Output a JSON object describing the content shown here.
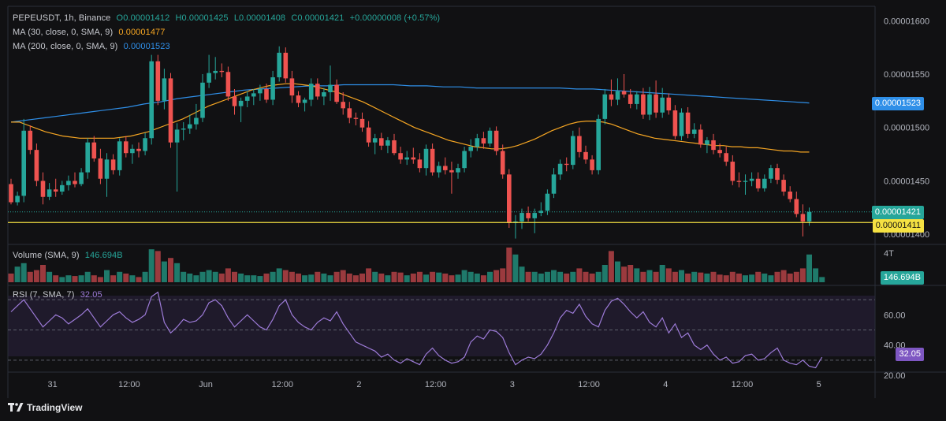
{
  "legend": {
    "symbol": "PEPEUSDT, 1h, Binance",
    "open": "O0.00001412",
    "high": "H0.00001425",
    "low": "L0.00001408",
    "close": "C0.00001421",
    "change": "+0.00000008 (+0.57%)",
    "ma30_label": "MA (30, close, 0, SMA, 9)",
    "ma30_value": "0.00001477",
    "ma200_label": "MA (200, close, 0, SMA, 9)",
    "ma200_value": "0.00001523",
    "volume_label": "Volume (SMA, 9)",
    "volume_value": "146.694B",
    "rsi_label": "RSI (7, SMA, 7)",
    "rsi_value": "32.05"
  },
  "tags": {
    "ma200": "0.00001523",
    "close": "0.00001421",
    "hline": "0.00001411",
    "volume": "146.694B",
    "rsi": "32.05"
  },
  "brand": "TradingView",
  "colors": {
    "up": "#26a69a",
    "down": "#ef5350",
    "ma30": "#f6a623",
    "ma200": "#2f8fe8",
    "rsi": "#9d7bd8",
    "hline": "#f5e142",
    "background": "#111113"
  },
  "chart_data": {
    "type": "candlestick",
    "price_axis": {
      "ylim": [
        1.392e-05,
        1.612e-05
      ],
      "ticks": [
        "0.00001600",
        "0.00001550",
        "0.00001500",
        "0.00001450",
        "0.00001400"
      ],
      "tick_values": [
        1.6e-05,
        1.55e-05,
        1.5e-05,
        1.45e-05,
        1.4e-05
      ]
    },
    "x_axis": {
      "ticks": [
        "31",
        "12:00",
        "Jun",
        "12:00",
        "2",
        "12:00",
        "3",
        "12:00",
        "4",
        "12:00",
        "5"
      ],
      "tick_index": [
        6.5,
        18.5,
        30.5,
        42.5,
        54.5,
        66.5,
        78.5,
        90.5,
        102.5,
        114.5,
        126.5
      ]
    },
    "candles": [
      {
        "o": 1.447,
        "h": 1.452,
        "l": 1.428,
        "c": 1.43
      },
      {
        "o": 1.43,
        "h": 1.44,
        "l": 1.427,
        "c": 1.436
      },
      {
        "o": 1.436,
        "h": 1.508,
        "l": 1.43,
        "c": 1.497
      },
      {
        "o": 1.497,
        "h": 1.502,
        "l": 1.475,
        "c": 1.479
      },
      {
        "o": 1.479,
        "h": 1.485,
        "l": 1.445,
        "c": 1.45
      },
      {
        "o": 1.45,
        "h": 1.458,
        "l": 1.428,
        "c": 1.435
      },
      {
        "o": 1.435,
        "h": 1.448,
        "l": 1.432,
        "c": 1.442
      },
      {
        "o": 1.442,
        "h": 1.452,
        "l": 1.435,
        "c": 1.44
      },
      {
        "o": 1.44,
        "h": 1.45,
        "l": 1.437,
        "c": 1.446
      },
      {
        "o": 1.446,
        "h": 1.455,
        "l": 1.441,
        "c": 1.45
      },
      {
        "o": 1.45,
        "h": 1.458,
        "l": 1.444,
        "c": 1.447
      },
      {
        "o": 1.447,
        "h": 1.462,
        "l": 1.445,
        "c": 1.458
      },
      {
        "o": 1.458,
        "h": 1.49,
        "l": 1.452,
        "c": 1.486
      },
      {
        "o": 1.486,
        "h": 1.492,
        "l": 1.468,
        "c": 1.471
      },
      {
        "o": 1.471,
        "h": 1.48,
        "l": 1.447,
        "c": 1.452
      },
      {
        "o": 1.452,
        "h": 1.476,
        "l": 1.435,
        "c": 1.47
      },
      {
        "o": 1.47,
        "h": 1.475,
        "l": 1.456,
        "c": 1.46
      },
      {
        "o": 1.46,
        "h": 1.49,
        "l": 1.455,
        "c": 1.487
      },
      {
        "o": 1.487,
        "h": 1.492,
        "l": 1.472,
        "c": 1.476
      },
      {
        "o": 1.476,
        "h": 1.484,
        "l": 1.466,
        "c": 1.48
      },
      {
        "o": 1.48,
        "h": 1.486,
        "l": 1.472,
        "c": 1.478
      },
      {
        "o": 1.478,
        "h": 1.495,
        "l": 1.474,
        "c": 1.49
      },
      {
        "o": 1.49,
        "h": 1.568,
        "l": 1.484,
        "c": 1.562
      },
      {
        "o": 1.562,
        "h": 1.568,
        "l": 1.521,
        "c": 1.525
      },
      {
        "o": 1.525,
        "h": 1.555,
        "l": 1.517,
        "c": 1.546
      },
      {
        "o": 1.546,
        "h": 1.551,
        "l": 1.481,
        "c": 1.486
      },
      {
        "o": 1.486,
        "h": 1.504,
        "l": 1.44,
        "c": 1.498
      },
      {
        "o": 1.498,
        "h": 1.505,
        "l": 1.488,
        "c": 1.499
      },
      {
        "o": 1.499,
        "h": 1.512,
        "l": 1.494,
        "c": 1.503
      },
      {
        "o": 1.503,
        "h": 1.522,
        "l": 1.498,
        "c": 1.509
      },
      {
        "o": 1.509,
        "h": 1.55,
        "l": 1.505,
        "c": 1.542
      },
      {
        "o": 1.542,
        "h": 1.568,
        "l": 1.537,
        "c": 1.551
      },
      {
        "o": 1.551,
        "h": 1.566,
        "l": 1.545,
        "c": 1.553
      },
      {
        "o": 1.553,
        "h": 1.56,
        "l": 1.547,
        "c": 1.552
      },
      {
        "o": 1.552,
        "h": 1.557,
        "l": 1.525,
        "c": 1.529
      },
      {
        "o": 1.529,
        "h": 1.536,
        "l": 1.512,
        "c": 1.52
      },
      {
        "o": 1.52,
        "h": 1.528,
        "l": 1.505,
        "c": 1.525
      },
      {
        "o": 1.525,
        "h": 1.534,
        "l": 1.519,
        "c": 1.529
      },
      {
        "o": 1.529,
        "h": 1.536,
        "l": 1.521,
        "c": 1.532
      },
      {
        "o": 1.532,
        "h": 1.54,
        "l": 1.525,
        "c": 1.536
      },
      {
        "o": 1.536,
        "h": 1.541,
        "l": 1.523,
        "c": 1.526
      },
      {
        "o": 1.526,
        "h": 1.553,
        "l": 1.521,
        "c": 1.547
      },
      {
        "o": 1.547,
        "h": 1.576,
        "l": 1.543,
        "c": 1.57
      },
      {
        "o": 1.57,
        "h": 1.575,
        "l": 1.542,
        "c": 1.546
      },
      {
        "o": 1.546,
        "h": 1.553,
        "l": 1.523,
        "c": 1.53
      },
      {
        "o": 1.53,
        "h": 1.534,
        "l": 1.519,
        "c": 1.523
      },
      {
        "o": 1.523,
        "h": 1.528,
        "l": 1.515,
        "c": 1.526
      },
      {
        "o": 1.526,
        "h": 1.546,
        "l": 1.52,
        "c": 1.541
      },
      {
        "o": 1.541,
        "h": 1.546,
        "l": 1.526,
        "c": 1.529
      },
      {
        "o": 1.529,
        "h": 1.537,
        "l": 1.521,
        "c": 1.533
      },
      {
        "o": 1.533,
        "h": 1.558,
        "l": 1.525,
        "c": 1.54
      },
      {
        "o": 1.54,
        "h": 1.545,
        "l": 1.522,
        "c": 1.524
      },
      {
        "o": 1.524,
        "h": 1.533,
        "l": 1.512,
        "c": 1.518
      },
      {
        "o": 1.518,
        "h": 1.524,
        "l": 1.504,
        "c": 1.509
      },
      {
        "o": 1.509,
        "h": 1.514,
        "l": 1.502,
        "c": 1.508
      },
      {
        "o": 1.508,
        "h": 1.514,
        "l": 1.496,
        "c": 1.5
      },
      {
        "o": 1.5,
        "h": 1.506,
        "l": 1.482,
        "c": 1.486
      },
      {
        "o": 1.486,
        "h": 1.494,
        "l": 1.475,
        "c": 1.49
      },
      {
        "o": 1.49,
        "h": 1.495,
        "l": 1.479,
        "c": 1.483
      },
      {
        "o": 1.483,
        "h": 1.491,
        "l": 1.476,
        "c": 1.488
      },
      {
        "o": 1.488,
        "h": 1.494,
        "l": 1.474,
        "c": 1.476
      },
      {
        "o": 1.476,
        "h": 1.482,
        "l": 1.466,
        "c": 1.47
      },
      {
        "o": 1.47,
        "h": 1.478,
        "l": 1.465,
        "c": 1.472
      },
      {
        "o": 1.472,
        "h": 1.481,
        "l": 1.466,
        "c": 1.47
      },
      {
        "o": 1.47,
        "h": 1.476,
        "l": 1.458,
        "c": 1.462
      },
      {
        "o": 1.462,
        "h": 1.484,
        "l": 1.455,
        "c": 1.48
      },
      {
        "o": 1.48,
        "h": 1.485,
        "l": 1.455,
        "c": 1.458
      },
      {
        "o": 1.458,
        "h": 1.468,
        "l": 1.453,
        "c": 1.464
      },
      {
        "o": 1.464,
        "h": 1.472,
        "l": 1.456,
        "c": 1.46
      },
      {
        "o": 1.46,
        "h": 1.468,
        "l": 1.438,
        "c": 1.458
      },
      {
        "o": 1.458,
        "h": 1.466,
        "l": 1.452,
        "c": 1.462
      },
      {
        "o": 1.462,
        "h": 1.482,
        "l": 1.458,
        "c": 1.478
      },
      {
        "o": 1.478,
        "h": 1.489,
        "l": 1.472,
        "c": 1.482
      },
      {
        "o": 1.482,
        "h": 1.494,
        "l": 1.478,
        "c": 1.49
      },
      {
        "o": 1.49,
        "h": 1.496,
        "l": 1.48,
        "c": 1.485
      },
      {
        "o": 1.485,
        "h": 1.5,
        "l": 1.482,
        "c": 1.497
      },
      {
        "o": 1.497,
        "h": 1.501,
        "l": 1.474,
        "c": 1.478
      },
      {
        "o": 1.478,
        "h": 1.484,
        "l": 1.452,
        "c": 1.456
      },
      {
        "o": 1.456,
        "h": 1.461,
        "l": 1.406,
        "c": 1.411
      },
      {
        "o": 1.411,
        "h": 1.418,
        "l": 1.396,
        "c": 1.412
      },
      {
        "o": 1.412,
        "h": 1.424,
        "l": 1.405,
        "c": 1.42
      },
      {
        "o": 1.42,
        "h": 1.426,
        "l": 1.412,
        "c": 1.415
      },
      {
        "o": 1.415,
        "h": 1.424,
        "l": 1.401,
        "c": 1.42
      },
      {
        "o": 1.42,
        "h": 1.43,
        "l": 1.417,
        "c": 1.422
      },
      {
        "o": 1.422,
        "h": 1.442,
        "l": 1.418,
        "c": 1.438
      },
      {
        "o": 1.438,
        "h": 1.462,
        "l": 1.434,
        "c": 1.456
      },
      {
        "o": 1.456,
        "h": 1.47,
        "l": 1.451,
        "c": 1.466
      },
      {
        "o": 1.466,
        "h": 1.472,
        "l": 1.459,
        "c": 1.465
      },
      {
        "o": 1.465,
        "h": 1.497,
        "l": 1.461,
        "c": 1.492
      },
      {
        "o": 1.492,
        "h": 1.5,
        "l": 1.472,
        "c": 1.477
      },
      {
        "o": 1.477,
        "h": 1.483,
        "l": 1.466,
        "c": 1.47
      },
      {
        "o": 1.47,
        "h": 1.474,
        "l": 1.456,
        "c": 1.46
      },
      {
        "o": 1.46,
        "h": 1.512,
        "l": 1.456,
        "c": 1.508
      },
      {
        "o": 1.508,
        "h": 1.536,
        "l": 1.503,
        "c": 1.531
      },
      {
        "o": 1.531,
        "h": 1.545,
        "l": 1.52,
        "c": 1.526
      },
      {
        "o": 1.526,
        "h": 1.546,
        "l": 1.521,
        "c": 1.534
      },
      {
        "o": 1.534,
        "h": 1.55,
        "l": 1.528,
        "c": 1.531
      },
      {
        "o": 1.531,
        "h": 1.536,
        "l": 1.518,
        "c": 1.522
      },
      {
        "o": 1.522,
        "h": 1.534,
        "l": 1.517,
        "c": 1.531
      },
      {
        "o": 1.531,
        "h": 1.537,
        "l": 1.508,
        "c": 1.512
      },
      {
        "o": 1.512,
        "h": 1.538,
        "l": 1.507,
        "c": 1.531
      },
      {
        "o": 1.531,
        "h": 1.544,
        "l": 1.509,
        "c": 1.514
      },
      {
        "o": 1.514,
        "h": 1.537,
        "l": 1.509,
        "c": 1.528
      },
      {
        "o": 1.528,
        "h": 1.532,
        "l": 1.512,
        "c": 1.516
      },
      {
        "o": 1.516,
        "h": 1.521,
        "l": 1.489,
        "c": 1.492
      },
      {
        "o": 1.492,
        "h": 1.518,
        "l": 1.488,
        "c": 1.514
      },
      {
        "o": 1.514,
        "h": 1.519,
        "l": 1.49,
        "c": 1.494
      },
      {
        "o": 1.494,
        "h": 1.504,
        "l": 1.49,
        "c": 1.498
      },
      {
        "o": 1.498,
        "h": 1.503,
        "l": 1.481,
        "c": 1.484
      },
      {
        "o": 1.484,
        "h": 1.491,
        "l": 1.476,
        "c": 1.488
      },
      {
        "o": 1.488,
        "h": 1.494,
        "l": 1.475,
        "c": 1.479
      },
      {
        "o": 1.479,
        "h": 1.485,
        "l": 1.472,
        "c": 1.476
      },
      {
        "o": 1.476,
        "h": 1.482,
        "l": 1.464,
        "c": 1.468
      },
      {
        "o": 1.468,
        "h": 1.474,
        "l": 1.446,
        "c": 1.45
      },
      {
        "o": 1.45,
        "h": 1.458,
        "l": 1.444,
        "c": 1.449
      },
      {
        "o": 1.449,
        "h": 1.456,
        "l": 1.437,
        "c": 1.45
      },
      {
        "o": 1.45,
        "h": 1.458,
        "l": 1.445,
        "c": 1.452
      },
      {
        "o": 1.452,
        "h": 1.458,
        "l": 1.44,
        "c": 1.443
      },
      {
        "o": 1.443,
        "h": 1.456,
        "l": 1.44,
        "c": 1.452
      },
      {
        "o": 1.452,
        "h": 1.465,
        "l": 1.448,
        "c": 1.462
      },
      {
        "o": 1.462,
        "h": 1.466,
        "l": 1.447,
        "c": 1.451
      },
      {
        "o": 1.451,
        "h": 1.456,
        "l": 1.436,
        "c": 1.44
      },
      {
        "o": 1.44,
        "h": 1.445,
        "l": 1.43,
        "c": 1.433
      },
      {
        "o": 1.433,
        "h": 1.44,
        "l": 1.416,
        "c": 1.419
      },
      {
        "o": 1.419,
        "h": 1.428,
        "l": 1.398,
        "c": 1.412
      },
      {
        "o": 1.412,
        "h": 1.425,
        "l": 1.408,
        "c": 1.421
      }
    ],
    "ma30": [
      1.505,
      1.505,
      1.502,
      1.499,
      1.496,
      1.494,
      1.492,
      1.491,
      1.49,
      1.49,
      1.49,
      1.49,
      1.49,
      1.491,
      1.492,
      1.494,
      1.496,
      1.499,
      1.502,
      1.505,
      1.508,
      1.512,
      1.516,
      1.52,
      1.523,
      1.526,
      1.529,
      1.532,
      1.535,
      1.537,
      1.539,
      1.54,
      1.541,
      1.541,
      1.54,
      1.539,
      1.537,
      1.535,
      1.533,
      1.53,
      1.527,
      1.524,
      1.52,
      1.516,
      1.512,
      1.508,
      1.504,
      1.5,
      1.497,
      1.494,
      1.491,
      1.488,
      1.486,
      1.484,
      1.482,
      1.481,
      1.48,
      1.48,
      1.481,
      1.483,
      1.486,
      1.489,
      1.493,
      1.497,
      1.5,
      1.503,
      1.505,
      1.506,
      1.506,
      1.505,
      1.503,
      1.5,
      1.497,
      1.494,
      1.492,
      1.49,
      1.489,
      1.488,
      1.487,
      1.486,
      1.485,
      1.484,
      1.483,
      1.483,
      1.482,
      1.482,
      1.481,
      1.481,
      1.48,
      1.479,
      1.478,
      1.478,
      1.477,
      1.477
    ],
    "ma200": [
      1.505,
      1.507,
      1.509,
      1.511,
      1.513,
      1.515,
      1.517,
      1.519,
      1.522,
      1.524,
      1.527,
      1.529,
      1.531,
      1.533,
      1.535,
      1.536,
      1.537,
      1.538,
      1.539,
      1.539,
      1.54,
      1.54,
      1.54,
      1.54,
      1.539,
      1.539,
      1.538,
      1.538,
      1.537,
      1.537,
      1.537,
      1.537,
      1.537,
      1.537,
      1.536,
      1.536,
      1.535,
      1.534,
      1.533,
      1.532,
      1.531,
      1.53,
      1.529,
      1.528,
      1.527,
      1.526,
      1.525,
      1.524,
      1.523
    ],
    "hline_value": 1.411,
    "volume": [
      0.25,
      0.45,
      0.55,
      0.3,
      0.35,
      0.5,
      0.3,
      0.2,
      0.15,
      0.2,
      0.18,
      0.2,
      0.3,
      0.2,
      0.15,
      0.35,
      0.2,
      0.3,
      0.25,
      0.2,
      0.15,
      0.3,
      0.95,
      0.9,
      0.6,
      0.7,
      0.55,
      0.3,
      0.25,
      0.2,
      0.3,
      0.35,
      0.3,
      0.25,
      0.4,
      0.3,
      0.25,
      0.2,
      0.2,
      0.18,
      0.25,
      0.3,
      0.4,
      0.35,
      0.3,
      0.25,
      0.2,
      0.22,
      0.3,
      0.25,
      0.2,
      0.3,
      0.35,
      0.25,
      0.2,
      0.25,
      0.4,
      0.3,
      0.25,
      0.2,
      0.3,
      0.28,
      0.2,
      0.25,
      0.3,
      0.22,
      0.3,
      0.28,
      0.25,
      0.2,
      0.22,
      0.35,
      0.3,
      0.25,
      0.2,
      0.3,
      0.35,
      0.4,
      1.0,
      0.8,
      0.45,
      0.3,
      0.3,
      0.25,
      0.3,
      0.35,
      0.3,
      0.25,
      0.3,
      0.4,
      0.3,
      0.25,
      0.3,
      0.5,
      0.9,
      0.6,
      0.45,
      0.5,
      0.4,
      0.3,
      0.35,
      0.3,
      0.5,
      0.4,
      0.3,
      0.35,
      0.25,
      0.3,
      0.28,
      0.25,
      0.3,
      0.22,
      0.2,
      0.3,
      0.25,
      0.2,
      0.22,
      0.3,
      0.25,
      0.2,
      0.3,
      0.35,
      0.25,
      0.3,
      0.4,
      0.8,
      0.4,
      0.15
    ],
    "volume_axis": {
      "ticks": [
        "4T"
      ]
    },
    "rsi": [
      62,
      66,
      70,
      64,
      58,
      52,
      56,
      60,
      58,
      54,
      57,
      60,
      64,
      58,
      52,
      56,
      60,
      62,
      58,
      55,
      57,
      60,
      72,
      75,
      55,
      48,
      52,
      57,
      55,
      56,
      60,
      68,
      70,
      66,
      58,
      52,
      56,
      60,
      56,
      52,
      50,
      57,
      66,
      70,
      60,
      55,
      52,
      50,
      55,
      58,
      56,
      62,
      54,
      48,
      42,
      40,
      38,
      36,
      32,
      34,
      30,
      28,
      31,
      29,
      27,
      34,
      38,
      33,
      30,
      28,
      29,
      32,
      42,
      46,
      44,
      50,
      49,
      45,
      35,
      27,
      30,
      32,
      31,
      34,
      40,
      48,
      58,
      63,
      61,
      67,
      59,
      54,
      52,
      63,
      69,
      71,
      67,
      62,
      58,
      62,
      55,
      52,
      58,
      48,
      54,
      45,
      48,
      40,
      37,
      40,
      34,
      30,
      32,
      28,
      29,
      33,
      34,
      30,
      31,
      35,
      38,
      30,
      28,
      27,
      30,
      26,
      25,
      32
    ],
    "rsi_axis": {
      "ylim": [
        20,
        80
      ],
      "ticks": [
        "60.00",
        "40.00",
        "20.00"
      ],
      "tick_values": [
        60,
        40,
        20
      ],
      "bands": [
        70,
        50,
        30
      ]
    }
  }
}
